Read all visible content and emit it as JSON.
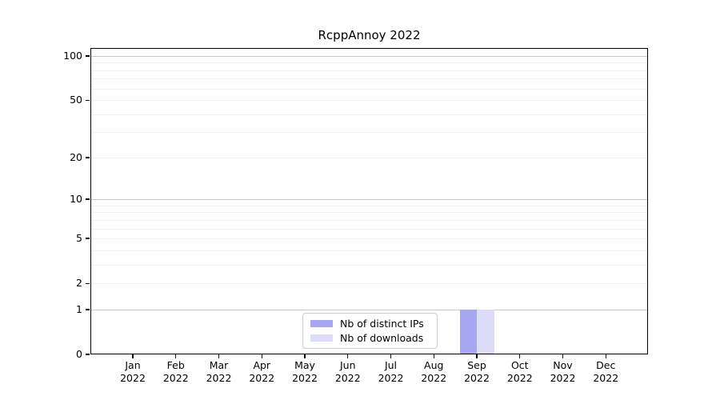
{
  "chart_data": {
    "type": "bar",
    "title": "RcppAnnoy 2022",
    "year": "2022",
    "months": [
      "Jan",
      "Feb",
      "Mar",
      "Apr",
      "May",
      "Jun",
      "Jul",
      "Aug",
      "Sep",
      "Oct",
      "Nov",
      "Dec"
    ],
    "categories": [
      "Jan 2022",
      "Feb 2022",
      "Mar 2022",
      "Apr 2022",
      "May 2022",
      "Jun 2022",
      "Jul 2022",
      "Aug 2022",
      "Sep 2022",
      "Oct 2022",
      "Nov 2022",
      "Dec 2022"
    ],
    "series": [
      {
        "name": "Nb of distinct IPs",
        "color": "#a6a6f2",
        "values": [
          0,
          0,
          0,
          0,
          0,
          0,
          0,
          0,
          1,
          0,
          0,
          0
        ]
      },
      {
        "name": "Nb of downloads",
        "color": "#dcdcf8",
        "values": [
          0,
          0,
          0,
          0,
          0,
          0,
          0,
          0,
          1,
          0,
          0,
          0
        ]
      }
    ],
    "xlabel": "",
    "ylabel": "",
    "yscale": "log1p",
    "ylim": [
      0,
      113
    ],
    "yticks": [
      0,
      1,
      2,
      5,
      10,
      20,
      50,
      100
    ],
    "major_gridlines": [
      1,
      10,
      100
    ],
    "minor_gridlines": [
      2,
      3,
      4,
      5,
      6,
      7,
      8,
      9,
      20,
      30,
      40,
      50,
      60,
      70,
      80,
      90
    ],
    "grid": "on",
    "legend_position": "lower center-left"
  },
  "colors": {
    "axis": "#000000",
    "major_grid": "#c9c9c9",
    "minor_grid": "#f0f0f0",
    "background": "#ffffff"
  }
}
